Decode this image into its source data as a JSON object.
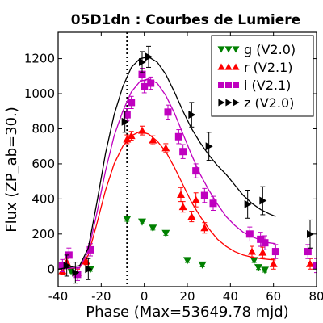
{
  "chart_data": {
    "type": "scatter",
    "title": "05D1dn : Courbes de Lumiere",
    "xlabel": "Phase (Max=53649.78 mjd)",
    "ylabel": "Flux (ZP_ab=30.)",
    "xlim": [
      -40,
      80
    ],
    "ylim": [
      -100,
      1350
    ],
    "xticks": [
      -40,
      -20,
      0,
      20,
      40,
      60,
      80
    ],
    "yticks": [
      0,
      200,
      400,
      600,
      800,
      1000,
      1200
    ],
    "grid": false,
    "legend_position": "top-right",
    "vline_x": -8,
    "series": [
      {
        "name": "g (V2.0)",
        "marker": "triangle-down",
        "color": "#008000",
        "points": [
          {
            "x": -8,
            "y": 285,
            "err": 12
          },
          {
            "x": -1,
            "y": 270,
            "err": 12
          },
          {
            "x": 4,
            "y": 235,
            "err": 12
          },
          {
            "x": 10,
            "y": 205,
            "err": 12
          },
          {
            "x": 20,
            "y": 50,
            "err": 12
          },
          {
            "x": 27,
            "y": 25,
            "err": 12
          },
          {
            "x": 51,
            "y": 50,
            "err": 12
          },
          {
            "x": 53,
            "y": 10,
            "err": 12
          },
          {
            "x": 56,
            "y": -5,
            "err": 12
          },
          {
            "x": -34,
            "y": -10,
            "err": 12
          },
          {
            "x": -25,
            "y": 0,
            "err": 12
          }
        ],
        "curve": []
      },
      {
        "name": "r (V2.1)",
        "marker": "triangle-up",
        "color": "#ff0000",
        "points": [
          {
            "x": -38,
            "y": -10,
            "err": 20
          },
          {
            "x": -36,
            "y": 40,
            "err": 20
          },
          {
            "x": -31,
            "y": -20,
            "err": 20
          },
          {
            "x": -27,
            "y": 45,
            "err": 20
          },
          {
            "x": -8,
            "y": 740,
            "err": 25
          },
          {
            "x": -6,
            "y": 760,
            "err": 25
          },
          {
            "x": -1,
            "y": 790,
            "err": 25
          },
          {
            "x": 4,
            "y": 735,
            "err": 25
          },
          {
            "x": 10,
            "y": 690,
            "err": 25
          },
          {
            "x": 17,
            "y": 425,
            "err": 40
          },
          {
            "x": 24,
            "y": 395,
            "err": 40
          },
          {
            "x": 18,
            "y": 355,
            "err": 30
          },
          {
            "x": 22,
            "y": 300,
            "err": 30
          },
          {
            "x": 28,
            "y": 235,
            "err": 30
          },
          {
            "x": 50,
            "y": 100,
            "err": 30
          },
          {
            "x": 55,
            "y": 95,
            "err": 30
          },
          {
            "x": 60,
            "y": 30,
            "err": 30
          },
          {
            "x": 77,
            "y": 30,
            "err": 30
          }
        ],
        "curve": [
          [
            -40,
            0
          ],
          [
            -30,
            8
          ],
          [
            -26,
            80
          ],
          [
            -22,
            260
          ],
          [
            -18,
            450
          ],
          [
            -14,
            600
          ],
          [
            -10,
            700
          ],
          [
            -6,
            760
          ],
          [
            -2,
            785
          ],
          [
            2,
            770
          ],
          [
            6,
            730
          ],
          [
            10,
            670
          ],
          [
            14,
            580
          ],
          [
            18,
            480
          ],
          [
            22,
            380
          ],
          [
            26,
            300
          ],
          [
            30,
            230
          ],
          [
            34,
            170
          ],
          [
            38,
            130
          ],
          [
            42,
            100
          ],
          [
            46,
            80
          ],
          [
            50,
            68
          ],
          [
            54,
            60
          ],
          [
            58,
            55
          ],
          [
            61,
            52
          ]
        ]
      },
      {
        "name": "i (V2.1)",
        "marker": "square",
        "color": "#bf00bf",
        "points": [
          {
            "x": -38,
            "y": 20,
            "err": 35
          },
          {
            "x": -35,
            "y": 80,
            "err": 40
          },
          {
            "x": -31,
            "y": -30,
            "err": 35
          },
          {
            "x": -25,
            "y": 110,
            "err": 35
          },
          {
            "x": -8,
            "y": 880,
            "err": 35
          },
          {
            "x": -6,
            "y": 950,
            "err": 35
          },
          {
            "x": -1,
            "y": 1110,
            "err": 35
          },
          {
            "x": 0,
            "y": 1040,
            "err": 35
          },
          {
            "x": 3,
            "y": 1060,
            "err": 35
          },
          {
            "x": 11,
            "y": 895,
            "err": 40
          },
          {
            "x": 16,
            "y": 755,
            "err": 40
          },
          {
            "x": 18,
            "y": 670,
            "err": 40
          },
          {
            "x": 24,
            "y": 560,
            "err": 40
          },
          {
            "x": 28,
            "y": 420,
            "err": 40
          },
          {
            "x": 32,
            "y": 375,
            "err": 40
          },
          {
            "x": 49,
            "y": 200,
            "err": 40
          },
          {
            "x": 54,
            "y": 170,
            "err": 40
          },
          {
            "x": 56,
            "y": 150,
            "err": 40
          },
          {
            "x": 61,
            "y": 100,
            "err": 40
          },
          {
            "x": 76,
            "y": 100,
            "err": 40
          },
          {
            "x": 80,
            "y": 20,
            "err": 40
          }
        ],
        "curve": [
          [
            -40,
            0
          ],
          [
            -30,
            10
          ],
          [
            -26,
            100
          ],
          [
            -22,
            320
          ],
          [
            -18,
            560
          ],
          [
            -14,
            760
          ],
          [
            -10,
            900
          ],
          [
            -6,
            1010
          ],
          [
            -2,
            1070
          ],
          [
            2,
            1085
          ],
          [
            6,
            1060
          ],
          [
            10,
            990
          ],
          [
            14,
            890
          ],
          [
            18,
            770
          ],
          [
            22,
            650
          ],
          [
            26,
            540
          ],
          [
            30,
            450
          ],
          [
            34,
            370
          ],
          [
            38,
            300
          ],
          [
            42,
            250
          ],
          [
            46,
            210
          ],
          [
            50,
            185
          ],
          [
            54,
            165
          ],
          [
            58,
            150
          ],
          [
            61,
            145
          ]
        ]
      },
      {
        "name": "z (V2.0)",
        "marker": "triangle-right",
        "color": "#000000",
        "points": [
          {
            "x": -36,
            "y": 20,
            "err": 60
          },
          {
            "x": -32,
            "y": -20,
            "err": 60
          },
          {
            "x": -26,
            "y": 0,
            "err": 60
          },
          {
            "x": -9,
            "y": 840,
            "err": 60
          },
          {
            "x": -1,
            "y": 1180,
            "err": 60
          },
          {
            "x": 2,
            "y": 1210,
            "err": 60
          },
          {
            "x": 22,
            "y": 880,
            "err": 70
          },
          {
            "x": 30,
            "y": 700,
            "err": 80
          },
          {
            "x": 55,
            "y": 390,
            "err": 80
          },
          {
            "x": 48,
            "y": 370,
            "err": 80
          },
          {
            "x": 77,
            "y": 200,
            "err": 80
          }
        ],
        "curve": [
          [
            -40,
            0
          ],
          [
            -30,
            20
          ],
          [
            -26,
            120
          ],
          [
            -22,
            380
          ],
          [
            -18,
            660
          ],
          [
            -14,
            880
          ],
          [
            -10,
            1040
          ],
          [
            -6,
            1150
          ],
          [
            -2,
            1200
          ],
          [
            2,
            1210
          ],
          [
            6,
            1180
          ],
          [
            10,
            1110
          ],
          [
            14,
            1010
          ],
          [
            18,
            900
          ],
          [
            22,
            800
          ],
          [
            26,
            720
          ],
          [
            30,
            650
          ],
          [
            34,
            590
          ],
          [
            38,
            540
          ],
          [
            42,
            480
          ],
          [
            46,
            420
          ],
          [
            50,
            375
          ],
          [
            54,
            340
          ],
          [
            58,
            315
          ],
          [
            61,
            300
          ]
        ]
      }
    ]
  }
}
